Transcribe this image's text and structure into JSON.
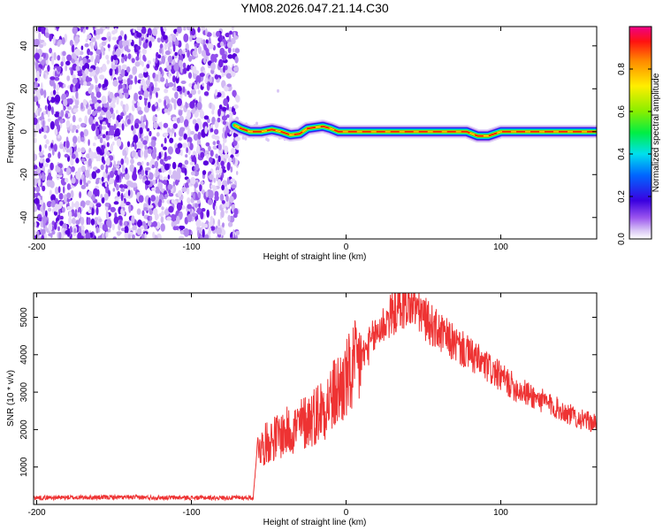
{
  "title": "YM08.2026.047.21.14.C30",
  "chart_data": [
    {
      "type": "heatmap",
      "xlabel": "Height of straight line (km)",
      "ylabel": "Frequency (Hz)",
      "xlim": [
        -202,
        162
      ],
      "ylim": [
        -50,
        49
      ],
      "xticks": [
        -200,
        -100,
        0,
        100
      ],
      "yticks": [
        -40,
        -20,
        0,
        20,
        40
      ],
      "noise_region_x": [
        -202,
        -70
      ],
      "ridge": {
        "x": [
          -72,
          -68,
          -62,
          -55,
          -48,
          -42,
          -36,
          -30,
          -25,
          -20,
          -15,
          -10,
          -5,
          5,
          20,
          40,
          60,
          70,
          78,
          85,
          92,
          100,
          120,
          140,
          162
        ],
        "freq": [
          3,
          1.5,
          0,
          0,
          1,
          0,
          -1.5,
          -1,
          1.5,
          2,
          2.5,
          1.5,
          0,
          0,
          0,
          0,
          0,
          0,
          0,
          -2,
          -2,
          0,
          0,
          0,
          0
        ]
      },
      "colorbar": {
        "label": "Normalized spectral amplitude",
        "ticks": [
          0.0,
          0.2,
          0.4,
          0.6,
          0.8
        ],
        "tick_labels": [
          "0.0",
          "0.2",
          "0.4",
          "0.6",
          "0.8"
        ],
        "range": [
          0,
          1
        ]
      }
    },
    {
      "type": "line",
      "xlabel": "Height of straight line (km)",
      "ylabel": "SNR (10 * v/v)",
      "xlim": [
        -202,
        162
      ],
      "ylim": [
        0,
        5650
      ],
      "xticks": [
        -200,
        -100,
        0,
        100
      ],
      "yticks": [
        1000,
        2000,
        3000,
        4000,
        5000
      ],
      "series": [
        {
          "color": "#ee3333",
          "x": [
            -202,
            -150,
            -100,
            -60,
            -57,
            -55,
            -50,
            -40,
            -30,
            -20,
            -10,
            0,
            10,
            20,
            30,
            40,
            45,
            50,
            60,
            70,
            80,
            90,
            100,
            110,
            120,
            130,
            140,
            150,
            162
          ],
          "y": [
            180,
            190,
            180,
            180,
            1800,
            1500,
            1700,
            1900,
            2100,
            2400,
            2800,
            3300,
            3900,
            4600,
            5100,
            5350,
            5300,
            5000,
            4600,
            4300,
            4000,
            3700,
            3400,
            3100,
            2900,
            2700,
            2500,
            2300,
            2150
          ]
        }
      ]
    }
  ]
}
